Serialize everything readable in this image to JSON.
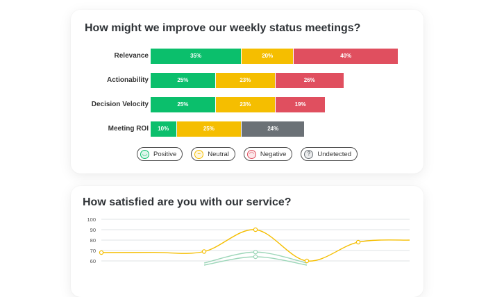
{
  "survey": {
    "title": "How might we improve our weekly status meetings?",
    "legend": [
      {
        "label": "Positive",
        "color": "#0bbf6c",
        "icon": "smiling-face-icon",
        "glyph": "◡"
      },
      {
        "label": "Neutral",
        "color": "#f5be00",
        "icon": "neutral-face-icon",
        "glyph": "–"
      },
      {
        "label": "Negative",
        "color": "#e04f5f",
        "icon": "frowning-face-icon",
        "glyph": "◠"
      },
      {
        "label": "Undetected",
        "color": "#6b7176",
        "icon": "question-mark-icon",
        "glyph": "?"
      }
    ]
  },
  "satisfaction": {
    "title": "How satisfied are you with our service?"
  },
  "chart_data": [
    {
      "type": "bar",
      "orientation": "horizontal-stacked",
      "categories": [
        "Relevance",
        "Actionability",
        "Decision Velocity",
        "Meeting ROI"
      ],
      "series": [
        {
          "name": "Positive",
          "color": "#0bbf6c",
          "values": [
            35,
            25,
            25,
            10
          ]
        },
        {
          "name": "Neutral",
          "color": "#f5be00",
          "values": [
            20,
            23,
            23,
            25
          ]
        },
        {
          "name": "Negative",
          "color": "#e04f5f",
          "values": [
            40,
            26,
            19,
            null
          ]
        },
        {
          "name": "Undetected",
          "color": "#6b7176",
          "values": [
            null,
            null,
            null,
            24
          ]
        }
      ],
      "legend_placement": "bottom"
    },
    {
      "type": "line",
      "y_ticks": [
        100,
        90,
        80,
        70,
        60
      ],
      "ylim": [
        58,
        100
      ],
      "xlim": [
        0,
        6
      ],
      "grid": true,
      "series": [
        {
          "color": "#f5be00",
          "x": [
            0,
            1,
            2,
            3,
            4,
            5,
            6
          ],
          "y": [
            68,
            68.2,
            69,
            90,
            60,
            78,
            80
          ],
          "markers": [
            true,
            false,
            true,
            true,
            true,
            true,
            false
          ]
        },
        {
          "color": "#9cd6b8",
          "x": [
            2,
            3,
            4
          ],
          "y": [
            58,
            68.5,
            58
          ],
          "markers": [
            false,
            true,
            false
          ]
        },
        {
          "color": "#9cd6b8",
          "x": [
            2,
            3,
            4
          ],
          "y": [
            56,
            64,
            56
          ],
          "markers": [
            false,
            true,
            false
          ]
        }
      ]
    }
  ]
}
